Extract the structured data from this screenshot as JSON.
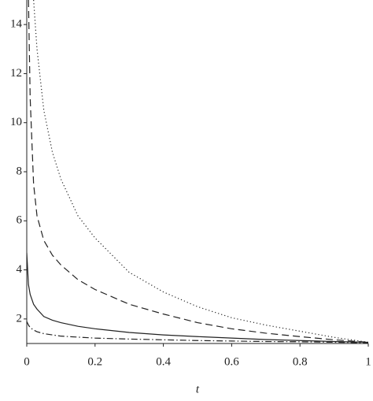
{
  "chart_data": {
    "type": "line",
    "x_label": "t",
    "x": [
      0,
      0.005,
      0.01,
      0.02,
      0.03,
      0.05,
      0.075,
      0.1,
      0.15,
      0.2,
      0.3,
      0.4,
      0.5,
      0.6,
      0.7,
      0.8,
      0.9,
      1
    ],
    "series": [
      {
        "color": "#222222",
        "dash": "solid",
        "values": [
          4.7,
          3.4,
          3.0,
          2.6,
          2.4,
          2.1,
          1.95,
          1.85,
          1.7,
          1.6,
          1.45,
          1.35,
          1.28,
          1.22,
          1.16,
          1.12,
          1.08,
          1.05
        ]
      },
      {
        "color": "#222222",
        "dash": "dashed",
        "values": [
          null,
          15,
          11,
          7.5,
          6.2,
          5.2,
          4.6,
          4.2,
          3.6,
          3.2,
          2.6,
          2.2,
          1.85,
          1.6,
          1.42,
          1.28,
          1.15,
          1.05
        ]
      },
      {
        "color": "#222222",
        "dash": "dotted",
        "values": [
          null,
          null,
          null,
          15,
          13,
          10.5,
          8.8,
          7.7,
          6.2,
          5.3,
          3.9,
          3.1,
          2.5,
          2.05,
          1.75,
          1.5,
          1.25,
          1.05
        ]
      },
      {
        "color": "#222222",
        "dash": "dashdot",
        "values": [
          1.9,
          1.75,
          1.65,
          1.55,
          1.48,
          1.4,
          1.35,
          1.3,
          1.26,
          1.22,
          1.18,
          1.15,
          1.12,
          1.1,
          1.08,
          1.07,
          1.05,
          1.03
        ]
      }
    ],
    "xlim": [
      0,
      1
    ],
    "ylim": [
      1,
      15
    ],
    "xticks": [
      0,
      0.2,
      0.4,
      0.6,
      0.8,
      1
    ],
    "yticks": [
      2,
      4,
      6,
      8,
      10,
      12,
      14
    ],
    "grid": false
  }
}
